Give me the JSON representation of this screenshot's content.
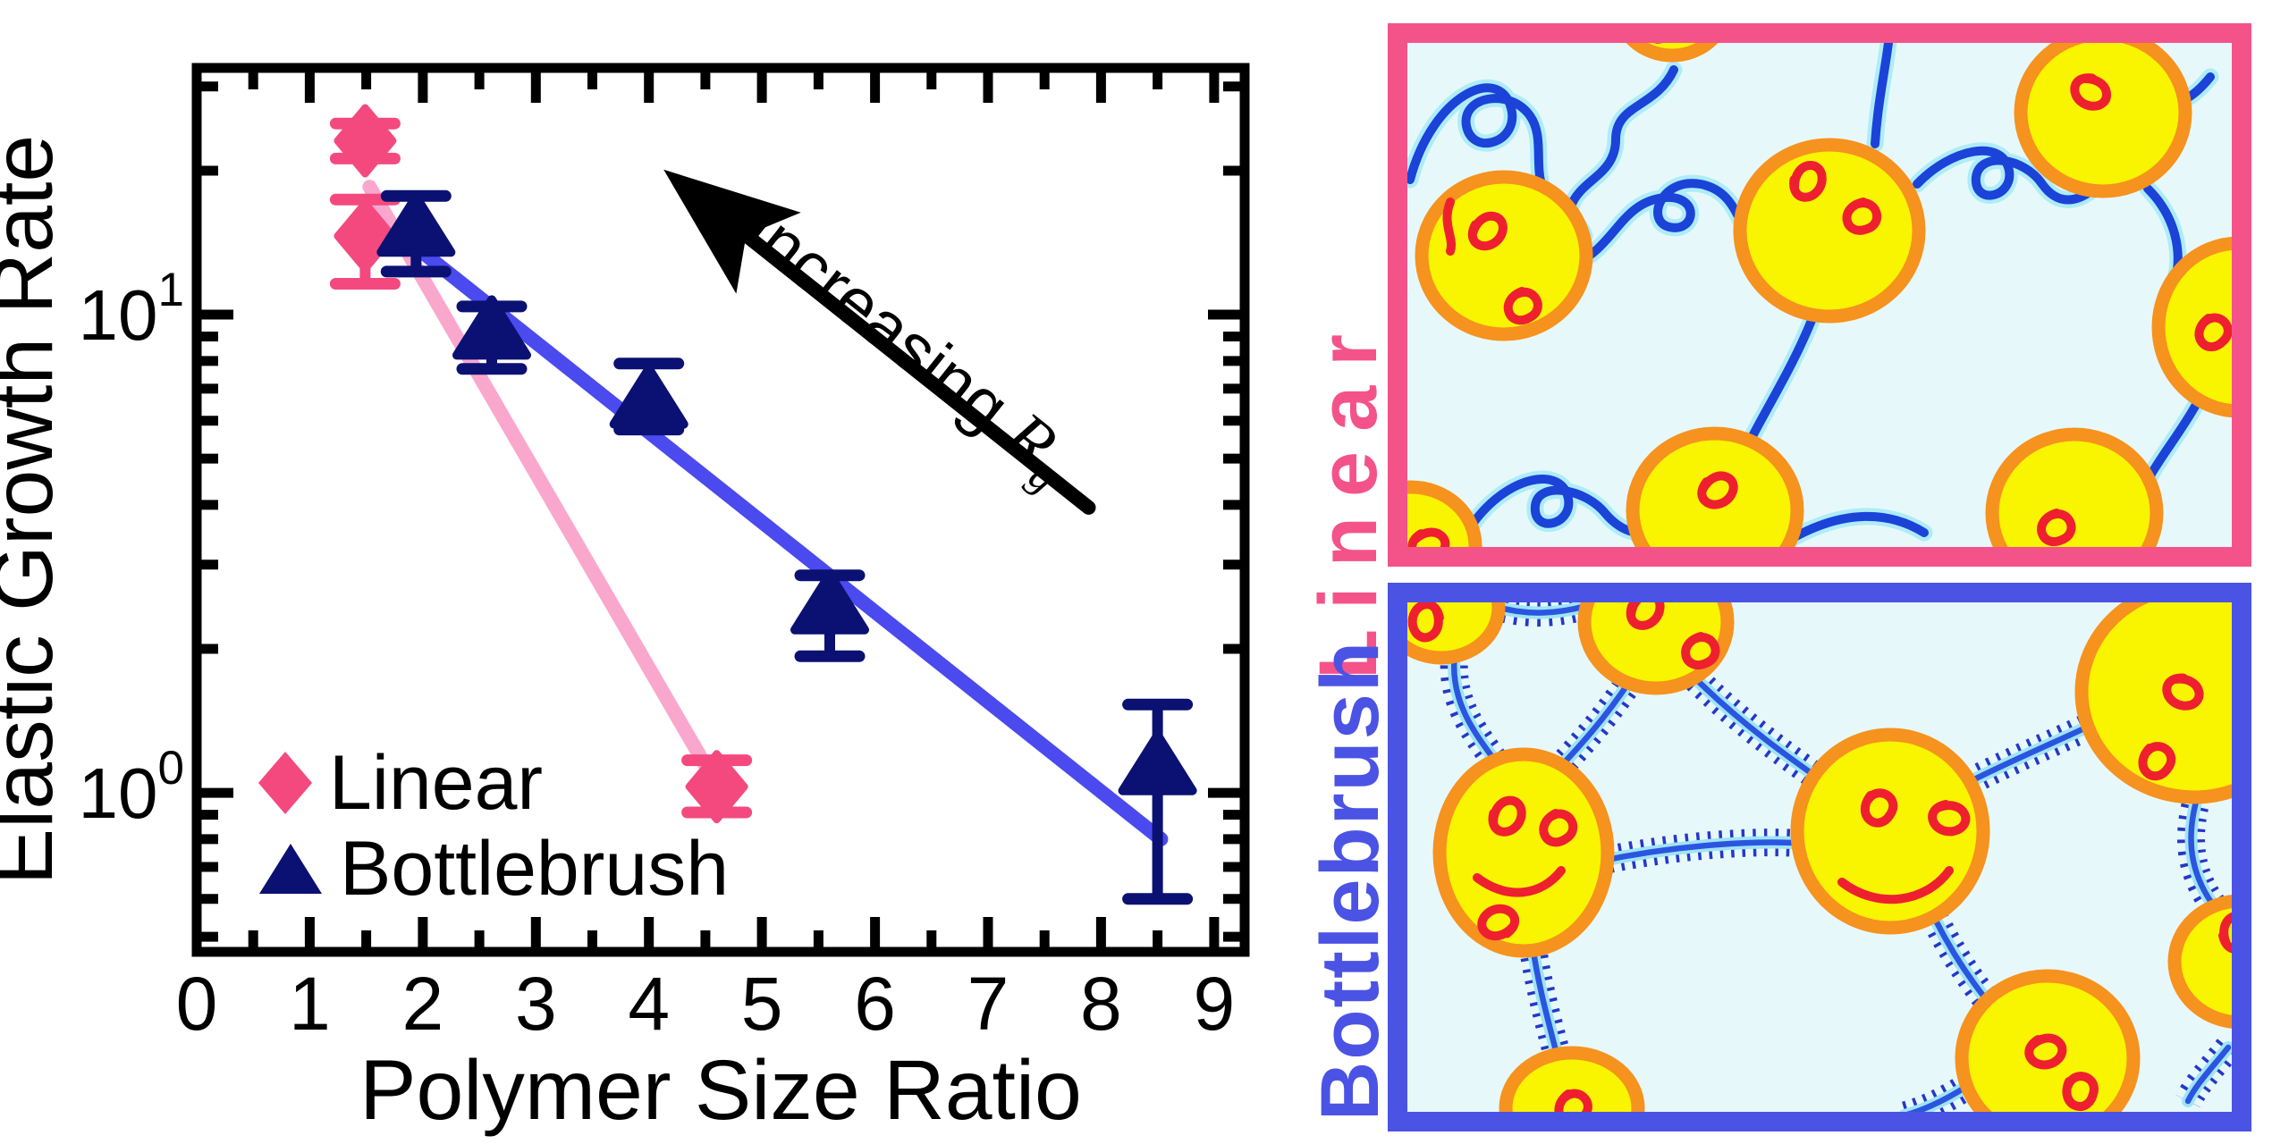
{
  "figure": {
    "background": "#FFFFFF"
  },
  "chart": {
    "ylabel": "Elastic Growth Rate",
    "xlabel": "Polymer Size Ratio",
    "annotation": {
      "word": "Increasing",
      "symbol": "R",
      "subscript": "g"
    }
  },
  "chart_data": {
    "type": "scatter",
    "title": "",
    "xlabel": "Polymer Size Ratio",
    "ylabel": "Elastic Growth Rate",
    "x_range": [
      0,
      9.27
    ],
    "y_scale": "log",
    "y_range": [
      0.465,
      32.8
    ],
    "x_ticks": [
      0,
      1,
      2,
      3,
      4,
      5,
      6,
      7,
      8,
      9
    ],
    "x_minor_step": 0.5,
    "y_ticks": [
      {
        "label_base": "10",
        "label_exp": "0",
        "value": 1
      },
      {
        "label_base": "10",
        "label_exp": "1",
        "value": 10
      }
    ],
    "y_minor_ticks": [
      0.5,
      0.6,
      0.7,
      0.8,
      0.9,
      2,
      3,
      4,
      5,
      6,
      7,
      8,
      9,
      20,
      30
    ],
    "grid": false,
    "legend_position": "lower-left",
    "series": [
      {
        "name": "Linear",
        "marker": "diamond",
        "color": "#F4497F",
        "fit_line_color": "#FAA7CE",
        "points": [
          {
            "x": 1.49,
            "y": 23.1,
            "y_lo": 21.2,
            "y_hi": 25.1
          },
          {
            "x": 1.49,
            "y": 14.6,
            "y_lo": 11.6,
            "y_hi": 17.4
          },
          {
            "x": 4.6,
            "y": 1.03,
            "y_lo": 0.91,
            "y_hi": 1.17
          }
        ],
        "fit_line": {
          "x1": 1.53,
          "y1": 18.5,
          "x2": 4.62,
          "y2": 1.02
        }
      },
      {
        "name": "Bottlebrush",
        "marker": "triangle",
        "color": "#0B1172",
        "fit_line_color": "#4A4AEE",
        "points": [
          {
            "x": 1.94,
            "y": 15.1,
            "y_lo": 12.3,
            "y_hi": 17.7
          },
          {
            "x": 2.61,
            "y": 9.2,
            "y_lo": 7.7,
            "y_hi": 10.4
          },
          {
            "x": 4.0,
            "y": 6.6,
            "y_lo": 5.75,
            "y_hi": 7.9
          },
          {
            "x": 5.6,
            "y": 2.45,
            "y_lo": 1.93,
            "y_hi": 2.85
          },
          {
            "x": 8.5,
            "y": 1.13,
            "y_lo": 0.6,
            "y_hi": 1.53
          }
        ],
        "fit_line": {
          "x1": 1.88,
          "y1": 14.2,
          "x2": 8.53,
          "y2": 0.8
        }
      }
    ],
    "annotation": {
      "text": "Increasing Rg",
      "arrow_tip": {
        "x": 4.13,
        "y": 20.1
      },
      "arrow_tail": {
        "x": 7.89,
        "y": 3.95
      }
    }
  },
  "panels": [
    {
      "label": "Linear",
      "color": "#F4538A",
      "background": "#E7F8FB",
      "droplet_fill": "#F9F400",
      "droplet_stroke": "#F6921E",
      "chain_color": "#1B43D8",
      "adsorbed_color": "#EE2030"
    },
    {
      "label": "Bottlebrush",
      "color": "#4B53E4",
      "background": "#E7F8FB",
      "droplet_fill": "#F9F400",
      "droplet_stroke": "#F6921E",
      "chain_color": "#2B55E0",
      "adsorbed_color": "#EE2030"
    }
  ]
}
